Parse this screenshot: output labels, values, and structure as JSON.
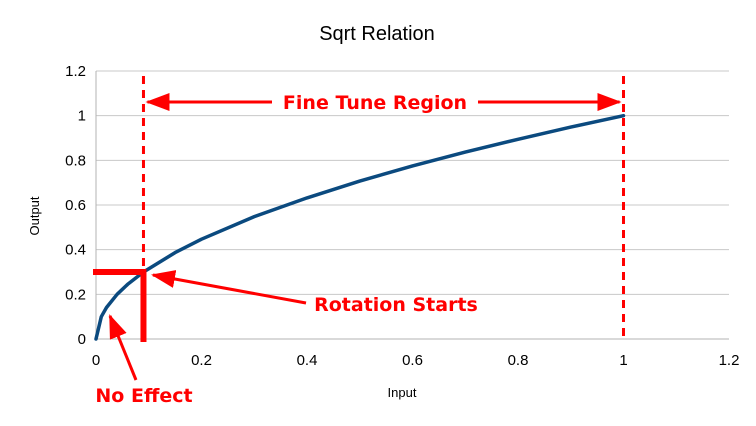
{
  "chart_data": {
    "type": "line",
    "title": "Sqrt Relation",
    "xlabel": "Input",
    "ylabel": "Output",
    "xlim": [
      0,
      1.2
    ],
    "ylim": [
      0,
      1.2
    ],
    "x_ticks": [
      "0",
      "0.2",
      "0.4",
      "0.6",
      "0.8",
      "1",
      "1.2"
    ],
    "y_ticks": [
      "0",
      "0.2",
      "0.4",
      "0.6",
      "0.8",
      "1",
      "1.2"
    ],
    "grid": "horizontal",
    "legend": "none",
    "series": [
      {
        "function": "sqrt",
        "color": "#0b4a7f",
        "x": [
          0,
          0.01,
          0.02,
          0.04,
          0.06,
          0.09,
          0.15,
          0.2,
          0.3,
          0.4,
          0.5,
          0.6,
          0.7,
          0.8,
          0.9,
          1.0
        ],
        "y": [
          0,
          0.1,
          0.141,
          0.2,
          0.245,
          0.3,
          0.387,
          0.447,
          0.548,
          0.632,
          0.707,
          0.775,
          0.837,
          0.894,
          0.949,
          1.0
        ]
      }
    ],
    "annotations": {
      "fine_tune_region": {
        "text": "Fine Tune Region",
        "x_start": 0.09,
        "x_end": 1.0,
        "y": 1.06,
        "color": "#ff0000"
      },
      "rotation_starts": {
        "text": "Rotation Starts",
        "x": 0.09,
        "y": 0.3,
        "color": "#ff0000"
      },
      "no_effect": {
        "text": "No Effect",
        "x": 0.02,
        "y": 0.12,
        "color": "#ff0000"
      }
    }
  }
}
